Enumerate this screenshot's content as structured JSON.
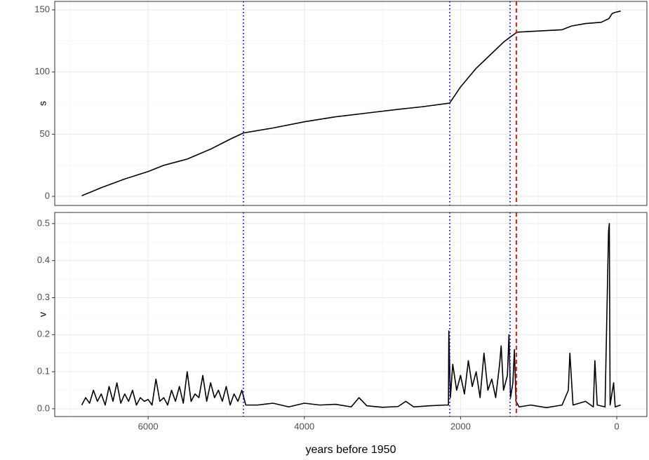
{
  "chart_data": [
    {
      "type": "line",
      "ylabel": "s",
      "color": "#000000",
      "grid": true,
      "xlim": [
        7196,
        -386
      ],
      "xticks": [
        6000,
        4000,
        2000,
        0
      ],
      "ylim": [
        -7.3,
        156.8
      ],
      "yticks": [
        0,
        50,
        100,
        150
      ],
      "x": [
        6850,
        6600,
        6300,
        6000,
        5800,
        5500,
        5200,
        4950,
        4780,
        4400,
        4000,
        3600,
        3200,
        2800,
        2500,
        2140,
        2000,
        1800,
        1600,
        1450,
        1366,
        1300,
        1285,
        1000,
        700,
        580,
        400,
        200,
        100,
        60,
        20,
        -50
      ],
      "values": [
        0.5,
        7,
        14,
        20,
        25,
        30,
        38,
        46,
        51,
        55,
        60,
        64,
        67,
        70,
        72,
        75,
        88,
        103,
        115,
        124,
        128,
        131,
        132,
        133,
        134,
        137,
        139,
        140,
        143,
        147,
        148,
        149
      ],
      "vlines": [
        {
          "x": 4780,
          "color": "#0000ff",
          "style": "dotted"
        },
        {
          "x": 2138,
          "color": "#0000ff",
          "style": "dotted"
        },
        {
          "x": 1366,
          "color": "#0000ff",
          "style": "dotted"
        },
        {
          "x": 1285,
          "color": "#ff0000",
          "style": "dashed"
        }
      ]
    },
    {
      "type": "line",
      "ylabel": "v",
      "xlabel": "years before 1950",
      "color": "#000000",
      "grid": true,
      "xlim": [
        7196,
        -386
      ],
      "xticks": [
        6000,
        4000,
        2000,
        0
      ],
      "ylim": [
        -0.021,
        0.53
      ],
      "yticks": [
        {
          "value": 0,
          "label": "0.0"
        },
        0.1,
        0.2,
        0.3,
        0.4,
        0.5
      ],
      "x": [
        6850,
        6800,
        6750,
        6700,
        6650,
        6600,
        6550,
        6500,
        6450,
        6400,
        6350,
        6300,
        6250,
        6200,
        6150,
        6100,
        6050,
        6000,
        5950,
        5900,
        5850,
        5800,
        5750,
        5700,
        5650,
        5600,
        5550,
        5500,
        5450,
        5400,
        5350,
        5300,
        5250,
        5200,
        5150,
        5100,
        5050,
        5000,
        4950,
        4900,
        4850,
        4800,
        4750,
        4600,
        4400,
        4200,
        4000,
        3800,
        3600,
        3400,
        3300,
        3200,
        3000,
        2800,
        2700,
        2600,
        2400,
        2200,
        2155,
        2150,
        2130,
        2100,
        2050,
        2000,
        1950,
        1900,
        1850,
        1800,
        1750,
        1700,
        1650,
        1600,
        1550,
        1500,
        1480,
        1450,
        1400,
        1380,
        1360,
        1330,
        1310,
        1290,
        1250,
        1100,
        900,
        700,
        620,
        600,
        560,
        400,
        300,
        280,
        250,
        150,
        105,
        95,
        85,
        40,
        20,
        -50
      ],
      "values": [
        0.01,
        0.03,
        0.015,
        0.05,
        0.02,
        0.04,
        0.01,
        0.06,
        0.02,
        0.07,
        0.015,
        0.04,
        0.02,
        0.05,
        0.01,
        0.03,
        0.02,
        0.025,
        0.01,
        0.08,
        0.02,
        0.03,
        0.01,
        0.05,
        0.02,
        0.06,
        0.015,
        0.1,
        0.02,
        0.04,
        0.03,
        0.09,
        0.02,
        0.07,
        0.03,
        0.05,
        0.02,
        0.06,
        0.01,
        0.04,
        0.02,
        0.05,
        0.01,
        0.01,
        0.015,
        0.005,
        0.015,
        0.01,
        0.012,
        0.005,
        0.03,
        0.008,
        0.004,
        0.006,
        0.02,
        0.005,
        0.008,
        0.01,
        0.01,
        0.21,
        0.03,
        0.12,
        0.05,
        0.09,
        0.04,
        0.13,
        0.06,
        0.1,
        0.03,
        0.15,
        0.05,
        0.08,
        0.03,
        0.12,
        0.17,
        0.05,
        0.09,
        0.2,
        0.03,
        0.07,
        0.16,
        0.02,
        0.005,
        0.01,
        0.003,
        0.01,
        0.05,
        0.15,
        0.01,
        0.02,
        0.005,
        0.13,
        0.01,
        0.005,
        0.48,
        0.5,
        0.01,
        0.07,
        0.005,
        0.01
      ],
      "vlines": [
        {
          "x": 4780,
          "color": "#0000ff",
          "style": "dotted"
        },
        {
          "x": 2138,
          "color": "#0000ff",
          "style": "dotted"
        },
        {
          "x": 1366,
          "color": "#0000ff",
          "style": "dotted"
        },
        {
          "x": 1285,
          "color": "#ff0000",
          "style": "dashed"
        }
      ]
    }
  ]
}
